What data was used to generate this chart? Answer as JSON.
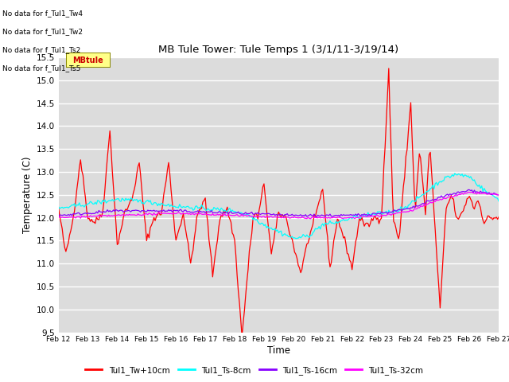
{
  "title": "MB Tule Tower: Tule Temps 1 (3/1/11-3/19/14)",
  "xlabel": "Time",
  "ylabel": "Temperature (C)",
  "ylim": [
    9.5,
    15.5
  ],
  "background_color": "#dcdcdc",
  "grid_color": "#ffffff",
  "legend_labels": [
    "Tul1_Tw+10cm",
    "Tul1_Ts-8cm",
    "Tul1_Ts-16cm",
    "Tul1_Ts-32cm"
  ],
  "legend_colors": [
    "#ff0000",
    "#00ffff",
    "#8800ff",
    "#ff00ff"
  ],
  "xtick_labels": [
    "Feb 12",
    "Feb 13",
    "Feb 14",
    "Feb 15",
    "Feb 16",
    "Feb 17",
    "Feb 18",
    "Feb 19",
    "Feb 20",
    "Feb 21",
    "Feb 22",
    "Feb 23",
    "Feb 24",
    "Feb 25",
    "Feb 26",
    "Feb 27"
  ],
  "no_data_texts": [
    "No data for f_Tul1_Tw4",
    "No data for f_Tul1_Tw2",
    "No data for f_Tul1_Ts2",
    "No data for f_Tul1_Ts5"
  ],
  "tooltip_text": "MBtule",
  "n_points": 361
}
